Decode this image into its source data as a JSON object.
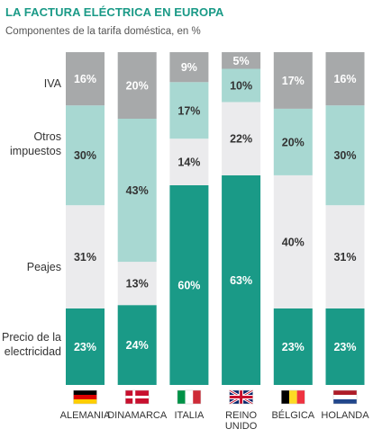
{
  "header": {
    "title": "LA FACTURA ELÉCTRICA EN EUROPA",
    "subtitle": "Componentes de la tarifa doméstica, en %"
  },
  "colors": {
    "precio": "#1a9a87",
    "peajes": "#ebebed",
    "otros": "#a8d8d2",
    "iva": "#a7a9aa",
    "title": "#1a9a87"
  },
  "chart_data": {
    "type": "bar",
    "stacked": true,
    "title": "LA FACTURA ELÉCTRICA EN EUROPA",
    "subtitle": "Componentes de la tarifa doméstica, en %",
    "categories": [
      "ALEMANIA",
      "DINAMARCA",
      "ITALIA",
      "REINO UNIDO",
      "BÉLGICA",
      "HOLANDA"
    ],
    "category_lines": [
      [
        "ALEMANIA"
      ],
      [
        "DINAMARCA"
      ],
      [
        "ITALIA"
      ],
      [
        "REINO",
        "UNIDO"
      ],
      [
        "BÉLGICA"
      ],
      [
        "HOLANDA"
      ]
    ],
    "flags": [
      "germany-flag-icon",
      "denmark-flag-icon",
      "italy-flag-icon",
      "uk-flag-icon",
      "belgium-flag-icon",
      "netherlands-flag-icon"
    ],
    "series": [
      {
        "name": "Precio de la electricidad",
        "name_lines": [
          "Precio de la",
          "electricidad"
        ],
        "color": "#1a9a87",
        "label_color": "#ffffff",
        "values": [
          23,
          24,
          60,
          63,
          23,
          23
        ]
      },
      {
        "name": "Peajes",
        "name_lines": [
          "Peajes"
        ],
        "color": "#ebebed",
        "label_color": "#333333",
        "values": [
          31,
          13,
          0,
          0,
          40,
          31
        ]
      },
      {
        "name": "Otros impuestos",
        "name_lines": [
          "Otros",
          "impuestos"
        ],
        "color": "#a8d8d2",
        "label_color": "#333333",
        "values": [
          30,
          43,
          17,
          10,
          20,
          30
        ]
      },
      {
        "name": "IVA",
        "name_lines": [
          "IVA"
        ],
        "color": "#a7a9aa",
        "label_color": "#ffffff",
        "values": [
          16,
          20,
          9,
          5,
          17,
          16
        ]
      }
    ],
    "extra_segments": [
      {
        "category": "ITALIA",
        "stack_after": "Precio de la electricidad",
        "value": 14,
        "color": "#ebebed",
        "label_color": "#333333"
      },
      {
        "category": "REINO UNIDO",
        "stack_after": "Precio de la electricidad",
        "value": 22,
        "color": "#ebebed",
        "label_color": "#333333"
      }
    ],
    "ylim": [
      0,
      100
    ],
    "value_suffix": "%",
    "legend": "left"
  }
}
